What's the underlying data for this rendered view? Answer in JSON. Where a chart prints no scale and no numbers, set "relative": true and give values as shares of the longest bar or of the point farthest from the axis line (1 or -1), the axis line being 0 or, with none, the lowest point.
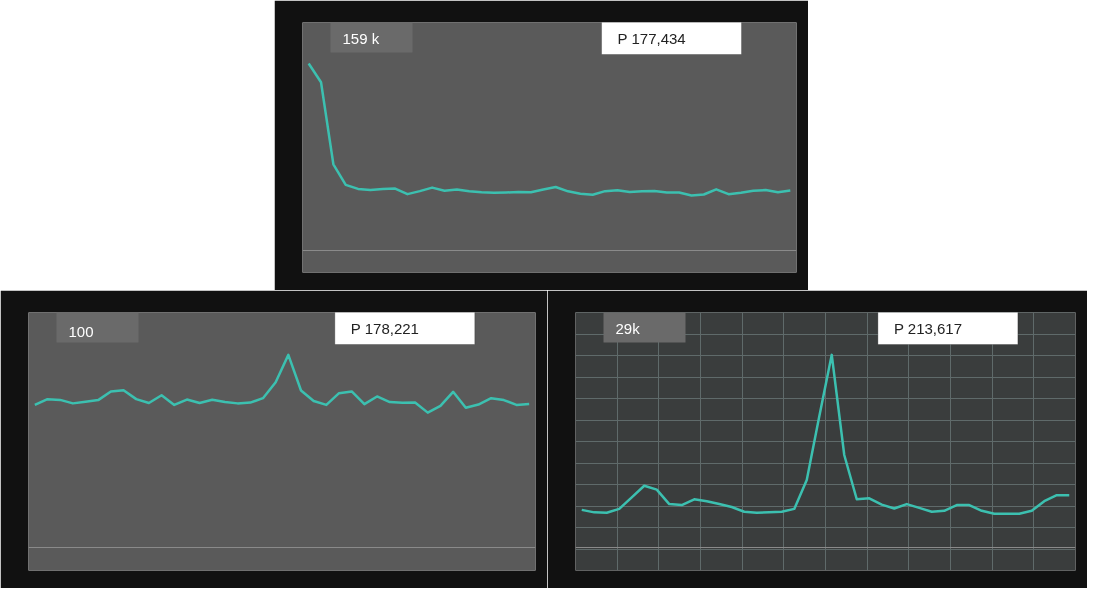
{
  "chart_data": [
    {
      "type": "line",
      "relative": true,
      "grid": false,
      "annotations": [
        "159 k",
        "P 177,434"
      ],
      "categories": [
        null,
        null,
        null,
        null,
        null,
        null,
        null,
        null,
        null,
        null,
        null,
        null,
        null,
        null,
        null,
        null,
        null,
        null,
        null,
        null,
        null,
        null,
        null,
        null,
        null,
        null,
        null,
        null,
        null,
        null,
        null,
        null,
        null,
        null,
        null,
        null,
        null,
        null,
        null,
        null
      ],
      "series": [
        {
          "color": "#3cc0b0",
          "values": [
            1.0,
            0.9,
            0.46,
            0.35,
            0.328,
            0.322,
            0.328,
            0.33,
            0.3,
            0.316,
            0.335,
            0.318,
            0.325,
            0.315,
            0.31,
            0.308,
            0.309,
            0.311,
            0.31,
            0.325,
            0.338,
            0.315,
            0.302,
            0.297,
            0.316,
            0.321,
            0.312,
            0.315,
            0.317,
            0.309,
            0.309,
            0.293,
            0.298,
            0.326,
            0.3,
            0.308,
            0.318,
            0.322,
            0.31,
            0.319
          ]
        }
      ]
    },
    {
      "type": "line",
      "relative": true,
      "grid": false,
      "annotations": [
        "100",
        "P 178,221"
      ],
      "categories": [
        null,
        null,
        null,
        null,
        null,
        null,
        null,
        null,
        null,
        null,
        null,
        null,
        null,
        null,
        null,
        null,
        null,
        null,
        null,
        null,
        null,
        null,
        null,
        null,
        null,
        null,
        null,
        null,
        null,
        null,
        null,
        null,
        null,
        null,
        null,
        null,
        null,
        null,
        null,
        null
      ],
      "series": [
        {
          "color": "#3cc0b0",
          "values": [
            0.74,
            0.77,
            0.766,
            0.748,
            0.756,
            0.765,
            0.81,
            0.816,
            0.77,
            0.75,
            0.79,
            0.74,
            0.768,
            0.75,
            0.767,
            0.755,
            0.748,
            0.752,
            0.775,
            0.858,
            1.0,
            0.815,
            0.76,
            0.74,
            0.801,
            0.81,
            0.744,
            0.784,
            0.755,
            0.751,
            0.753,
            0.7,
            0.735,
            0.808,
            0.725,
            0.742,
            0.775,
            0.765,
            0.74,
            0.745
          ]
        }
      ]
    },
    {
      "type": "line",
      "relative": true,
      "grid": true,
      "annotations": [
        "29k",
        "P 213,617"
      ],
      "categories": [
        null,
        null,
        null,
        null,
        null,
        null,
        null,
        null,
        null,
        null,
        null,
        null,
        null,
        null,
        null,
        null,
        null,
        null,
        null,
        null,
        null,
        null,
        null,
        null,
        null,
        null,
        null,
        null,
        null,
        null,
        null,
        null,
        null,
        null,
        null,
        null,
        null,
        null,
        null,
        null
      ],
      "series": [
        {
          "color": "#3cc0b0",
          "values": [
            0.195,
            0.182,
            0.18,
            0.2,
            0.26,
            0.32,
            0.3,
            0.225,
            0.22,
            0.25,
            0.24,
            0.225,
            0.21,
            0.185,
            0.18,
            0.182,
            0.185,
            0.2,
            0.35,
            0.68,
            1.0,
            0.48,
            0.25,
            0.255,
            0.222,
            0.202,
            0.225,
            0.205,
            0.185,
            0.19,
            0.22,
            0.22,
            0.19,
            0.175,
            0.175,
            0.175,
            0.19,
            0.24,
            0.271,
            0.271
          ]
        }
      ]
    }
  ]
}
